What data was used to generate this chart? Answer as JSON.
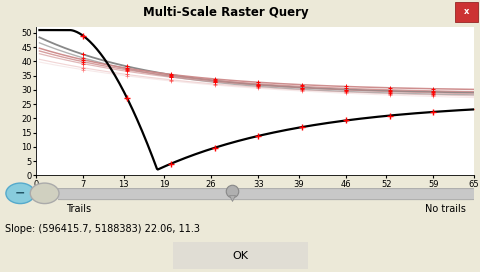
{
  "title": "Multi-Scale Raster Query",
  "xlim": [
    0,
    65
  ],
  "ylim": [
    0,
    52
  ],
  "xticks": [
    0,
    7,
    13,
    19,
    26,
    33,
    39,
    46,
    52,
    59,
    65
  ],
  "yticks": [
    0,
    5,
    10,
    15,
    20,
    25,
    30,
    35,
    40,
    45,
    50
  ],
  "bg_color": "#d4d0c8",
  "plot_bg": "#ffffff",
  "slope_text": "Slope: (596415.7, 5188383) 22.06, 11.3",
  "trails_label": "Trails",
  "no_trails_label": "No trails",
  "title_bar_color": "#d4d0c8",
  "ui_bg": "#ece9d8",
  "slider_track_color": "#c8c8c8",
  "slider_handle_color": "#a0a0a0",
  "btn_blue_color": "#88ccdd",
  "btn_gray_color": "#d0d0c0",
  "ok_btn_color": "#e0ddd4",
  "close_btn_color": "#cc3333"
}
